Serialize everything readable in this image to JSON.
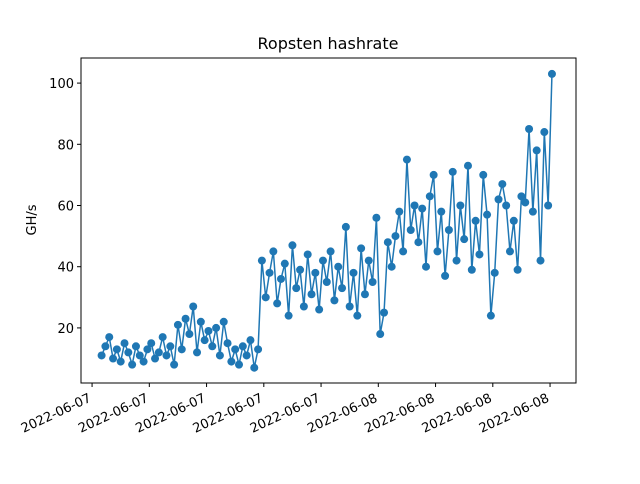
{
  "chart_data": {
    "type": "line",
    "title": "Ropsten hashrate",
    "ylabel": "GH/s",
    "color": "#1f77b4",
    "markers": true,
    "x": [
      9.5,
      9.7,
      9.9,
      10.1,
      10.3,
      10.5,
      10.7,
      10.9,
      11.1,
      11.3,
      11.5,
      11.7,
      11.9,
      12.1,
      12.3,
      12.5,
      12.7,
      12.9,
      13.1,
      13.3,
      13.5,
      13.7,
      13.9,
      14.1,
      14.3,
      14.5,
      14.7,
      14.9,
      15.1,
      15.3,
      15.5,
      15.7,
      15.9,
      16.1,
      16.3,
      16.5,
      16.7,
      16.9,
      17.1,
      17.3,
      17.5,
      17.7,
      17.9,
      18.1,
      18.3,
      18.5,
      18.7,
      18.9,
      19.1,
      19.3,
      19.5,
      19.7,
      19.9,
      20.1,
      20.3,
      20.5,
      20.7,
      20.9,
      21.1,
      21.3,
      21.5,
      21.7,
      21.9,
      22.1,
      22.3,
      22.5,
      22.7,
      22.9,
      23.1,
      23.3,
      23.5,
      23.7,
      23.9,
      24.1,
      24.3,
      24.5,
      24.7,
      24.9,
      25.1,
      25.3,
      25.5,
      25.7,
      25.9,
      26.1,
      26.3,
      26.5,
      26.7,
      26.9,
      27.1,
      27.3,
      27.5,
      27.7,
      27.9,
      28.1,
      28.3,
      28.5,
      28.7,
      28.9,
      29.1,
      29.3,
      29.5,
      29.7,
      29.9,
      30.1,
      30.3,
      30.5,
      30.7,
      30.9,
      31.1,
      31.3,
      31.5,
      31.7,
      31.9,
      32.1,
      32.3,
      32.5,
      32.7,
      32.9,
      33.1
    ],
    "values": [
      11,
      14,
      17,
      10,
      13,
      9,
      15,
      12,
      8,
      14,
      11,
      9,
      13,
      15,
      10,
      12,
      17,
      11,
      14,
      8,
      21,
      13,
      23,
      18,
      27,
      12,
      22,
      16,
      19,
      14,
      20,
      11,
      22,
      15,
      9,
      13,
      8,
      14,
      11,
      16,
      7,
      13,
      42,
      30,
      38,
      45,
      28,
      36,
      41,
      24,
      47,
      33,
      39,
      27,
      44,
      31,
      38,
      26,
      42,
      35,
      45,
      29,
      40,
      33,
      53,
      27,
      38,
      24,
      46,
      31,
      42,
      35,
      56,
      18,
      25,
      48,
      40,
      50,
      58,
      45,
      75,
      52,
      60,
      48,
      59,
      40,
      63,
      70,
      45,
      58,
      37,
      52,
      71,
      42,
      60,
      49,
      73,
      39,
      55,
      44,
      70,
      57,
      24,
      38,
      62,
      67,
      60,
      45,
      55,
      39,
      63,
      61,
      85,
      58,
      78,
      42,
      84,
      60,
      103
    ],
    "xlim": [
      8.42,
      34.36
    ],
    "xticks": [
      {
        "value": 9,
        "label": "2022-06-07"
      },
      {
        "value": 12,
        "label": "2022-06-07"
      },
      {
        "value": 15,
        "label": "2022-06-07"
      },
      {
        "value": 18,
        "label": "2022-06-07"
      },
      {
        "value": 21,
        "label": "2022-06-07"
      },
      {
        "value": 24,
        "label": "2022-06-08"
      },
      {
        "value": 27,
        "label": "2022-06-08"
      },
      {
        "value": 30,
        "label": "2022-06-08"
      },
      {
        "value": 33,
        "label": "2022-06-08"
      }
    ],
    "ylim": [
      2.0,
      108.2
    ],
    "yticks": [
      20,
      40,
      60,
      80,
      100
    ]
  }
}
